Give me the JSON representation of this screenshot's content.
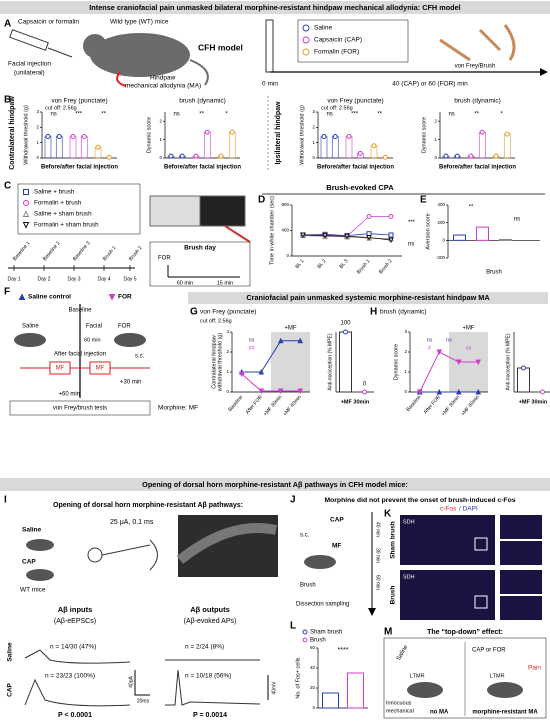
{
  "banners": [
    "Intense craniofacial pain unmasked bilateral morphine-resistant hindpaw mechanical allodynia: CFH model",
    "Craniofacial pain unmasked systemic morphine-resistant hindpaw MA",
    "Opening of dorsal horn morphine-resistant Aβ pathways in CFH model mice:"
  ],
  "panel_letters": [
    "A",
    "B",
    "C",
    "D",
    "E",
    "F",
    "G",
    "H",
    "I",
    "J",
    "K",
    "L",
    "M"
  ],
  "A": {
    "injection": "Capsaicin or formalin",
    "mouse": "Wild type (WT) mice",
    "facial": "Facial injection",
    "unilateral": "(unilateral)",
    "hindpaw": "Hindpaw",
    "ma": "mechanical allodynia (MA)",
    "model": "CFH model",
    "legend": [
      "Saline",
      "Capsaicin (CAP)",
      "Formalin (FOR)"
    ],
    "colors": [
      "#2a3fae",
      "#d13bd1",
      "#e39a2c"
    ],
    "t0": "0 min",
    "t1": "40 (CAP) or 60 (FOR) min",
    "test": "von Frey/Brush"
  },
  "B": {
    "sides": [
      "Contralateral hindpaw",
      "Ipsilateral hindpaw"
    ],
    "xlabel": "Before/after facial injection",
    "charts": [
      {
        "type": "dot",
        "title": "von Frey (punctate)",
        "note": "cut off: 2.56g",
        "ylabel": "Withdrawal threshold (g)",
        "ylim": [
          0,
          3
        ],
        "yticks": [
          0,
          1,
          2,
          3
        ],
        "values": [
          1.4,
          1.4,
          1.4,
          1.4,
          0.7,
          0.05
        ],
        "sig": [
          "ns",
          "***",
          "**"
        ]
      },
      {
        "type": "dot",
        "title": "brush (dynamic)",
        "ylabel": "Dynamic score",
        "ylim": [
          0,
          2.5
        ],
        "yticks": [
          0,
          1,
          2
        ],
        "values": [
          0.1,
          0.1,
          0.1,
          1.4,
          0.1,
          1.4
        ],
        "sig": [
          "ns",
          "**",
          "*"
        ]
      },
      {
        "type": "dot",
        "title": "von Frey (punctate)",
        "note": "cut off: 2.56g",
        "ylabel": "Withdrawal threshold (g)",
        "ylim": [
          0,
          3
        ],
        "yticks": [
          0,
          1,
          2,
          3
        ],
        "values": [
          1.4,
          1.4,
          1.4,
          0.3,
          0.8,
          0.05
        ],
        "sig": [
          "ns",
          "***",
          "**"
        ]
      },
      {
        "type": "dot",
        "title": "brush (dynamic)",
        "ylabel": "Dynamic score",
        "ylim": [
          0,
          2.5
        ],
        "yticks": [
          0,
          1,
          2
        ],
        "values": [
          0.1,
          0.1,
          0.1,
          1.4,
          0.1,
          1.3
        ],
        "sig": [
          "ns",
          "**",
          "*"
        ]
      }
    ]
  },
  "C": {
    "days": [
      "Day 1",
      "Day 2",
      "Day 3",
      "Day 4",
      "Day 5"
    ],
    "sessions": [
      "Baseline 1",
      "Baseline 2",
      "Baseline 3",
      "Brush 1",
      "Brush 2"
    ],
    "brush_day": "Brush day",
    "for": "FOR",
    "t1": "60 min",
    "t2": "15 min"
  },
  "D": {
    "type": "line",
    "title": "Brush-evoked CPA",
    "ylabel": "Time in white chamber (sec)",
    "categories": [
      "BL 1",
      "BL 2",
      "BL 3",
      "Brush 1",
      "Brush 2"
    ],
    "ylim": [
      0,
      800
    ],
    "yticks": [
      0,
      400,
      800
    ],
    "series": [
      {
        "name": "Saline + brush",
        "color": "#2a3fae",
        "marker": "square",
        "values": [
          330,
          340,
          320,
          350,
          330
        ]
      },
      {
        "name": "Formalin + brush",
        "color": "#d13bd1",
        "marker": "circle",
        "values": [
          320,
          330,
          310,
          620,
          620
        ]
      },
      {
        "name": "Saline + sham brush",
        "color": "#888888",
        "marker": "triangle",
        "values": [
          320,
          310,
          300,
          280,
          270
        ]
      },
      {
        "name": "Formalin + sham brush",
        "color": "#111111",
        "marker": "triangle-down",
        "values": [
          330,
          320,
          310,
          290,
          250
        ]
      }
    ],
    "sig": [
      "***",
      "ns"
    ]
  },
  "E": {
    "type": "bar",
    "ylabel": "Aversion score",
    "xlabel": "Brush",
    "values": [
      60,
      150,
      10,
      0
    ],
    "ylim": [
      -200,
      400
    ],
    "yticks": [
      -200,
      0,
      200,
      400
    ],
    "sig": [
      "**",
      "ns"
    ]
  },
  "F": {
    "baseline": "Baseline",
    "saline_inj": "Saline",
    "facial": "Facial",
    "for_inj": "FOR",
    "t60": "60 min",
    "after": "After facial injection",
    "sc": "s.c.",
    "mf": [
      "MF",
      "MF"
    ],
    "t30": "+30 min",
    "t60b": "+60 min",
    "tests": "von Frey/brush tests",
    "morphine": "Morphine: MF"
  },
  "G": {
    "type": "line",
    "title": "von Frey (punctate)",
    "note": "cut off: 2.56g",
    "shade": "+MF",
    "ylabel": [
      "Contralateral hindpaw",
      "withdrawal threshold (g)"
    ],
    "categories": [
      "Baseline",
      "After FOR",
      "+MF 30min",
      "+MF 60min"
    ],
    "ylim": [
      0,
      3
    ],
    "yticks": [
      0,
      1,
      2,
      3
    ],
    "series": [
      {
        "name": "Saline control",
        "color": "#2a3fae",
        "values": [
          1.0,
          1.0,
          2.56,
          2.56
        ]
      },
      {
        "name": "FOR",
        "color": "#d13bd1",
        "values": [
          0.9,
          0.05,
          0.05,
          0.05
        ]
      }
    ],
    "sig": [
      "ns",
      "##"
    ],
    "bar": {
      "ylabel": "Anti-nociception (% MPE)",
      "category": "+MF 30min",
      "values": [
        100,
        0
      ],
      "ylim": [
        0,
        100
      ]
    }
  },
  "H": {
    "type": "line",
    "title": "brush (dynamic)",
    "shade": "+MF",
    "ylabel": "Dynamic score",
    "categories": [
      "Baseline",
      "After FOR",
      "+MF 30min",
      "+MF 60min"
    ],
    "ylim": [
      0,
      3
    ],
    "yticks": [
      0,
      1,
      2,
      3
    ],
    "series": [
      {
        "color": "#2a3fae",
        "values": [
          0,
          0,
          0,
          0
        ]
      },
      {
        "color": "#d13bd1",
        "values": [
          0,
          2,
          1.5,
          1.5
        ]
      }
    ],
    "sig": [
      "ns",
      "#",
      "ns",
      "ns"
    ],
    "bar": {
      "ylabel": "Anti-nociception (% MPE)",
      "category": "+MF 30min",
      "values": [
        40,
        0
      ],
      "ylim": [
        0,
        100
      ]
    }
  },
  "I": {
    "title": "Opening of dorsal horn morphine-resistant Aβ pathways:",
    "saline": "Saline",
    "cap": "CAP",
    "wt": "WT mice",
    "stim": "25 μA, 0.1 ms",
    "inputs": [
      "Aβ inputs",
      "(Aβ-eEPSCs)"
    ],
    "outputs": [
      "Aβ outputs",
      "(Aβ-evoked APs)"
    ],
    "rows": [
      "Saline",
      "CAP"
    ],
    "n": [
      "n = 14/30 (47%)",
      "n = 2/24 (8%)",
      "n = 23/23 (100%)",
      "n = 10/18 (56%)"
    ],
    "p": [
      "P < 0.0001",
      "P = 0.0014"
    ],
    "scales": [
      "40pA",
      "20ms",
      "40mV"
    ]
  },
  "J": {
    "title": "Morphine did not prevent the onset of brush-induced c-Fos",
    "cap": "CAP",
    "sc": "s.c.",
    "mf": "MF",
    "brush": "Brush",
    "dissection": "Dissection sampling",
    "times": [
      "40 min",
      "30 min",
      "60 min"
    ]
  },
  "K": {
    "stain": [
      "c-Fos",
      "/ DAPI"
    ],
    "sdh": [
      "SDH",
      "SDH"
    ],
    "rows": [
      "Sham brush",
      "Brush"
    ]
  },
  "L": {
    "type": "bar",
    "ylabel": "No. of Fos+ cells",
    "legend": [
      "Sham brush",
      "Brush"
    ],
    "colors": [
      "#2a3fae",
      "#d13bd1"
    ],
    "values": [
      15,
      35
    ],
    "ylim": [
      0,
      60
    ],
    "yticks": [
      0,
      20,
      40,
      60
    ],
    "sig": "****"
  },
  "M": {
    "title": "The “top-down” effect:",
    "saline": "Saline",
    "capfor": "CAP or FOR",
    "ltmr": [
      "LTMR",
      "LTMR"
    ],
    "pain": "Pain",
    "innocuous": [
      "Innocuous",
      "mechanical"
    ],
    "noma": "no MA",
    "mrma": "morphine-resistant MA"
  }
}
